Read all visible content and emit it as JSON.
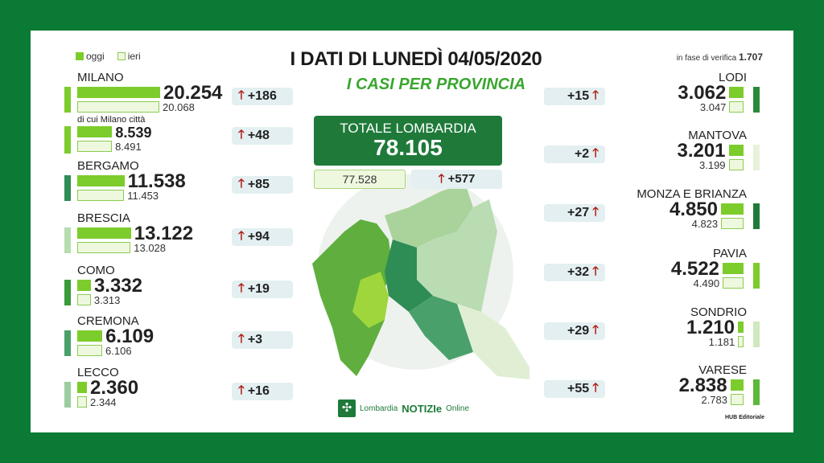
{
  "legend": {
    "today": "oggi",
    "yesterday": "ieri"
  },
  "header": {
    "title": "I DATI DI LUNEDÌ 04/05/2020",
    "subtitle": "I CASI PER PROVINCIA",
    "verification_label": "in fase di verifica",
    "verification_value": "1.707"
  },
  "total": {
    "label": "TOTALE LOMBARDIA",
    "value": "78.105",
    "previous": "77.528",
    "delta": "+577"
  },
  "colors": {
    "frame": "#0b7a35",
    "today_bar": "#7ccc2c",
    "yesterday_bar": "#eef8df",
    "increase_arrow": "#b01a10"
  },
  "left": [
    {
      "name": "MILANO",
      "today": "20.254",
      "yesterday": "20.068",
      "delta": "+186",
      "t": 20254,
      "y": 20068,
      "color": "#7ccc2c"
    },
    {
      "name": "di cui Milano città",
      "today": "8.539",
      "yesterday": "8.491",
      "delta": "+48",
      "t": 8539,
      "y": 8491,
      "color": "#7ccc2c",
      "sub": true
    },
    {
      "name": "BERGAMO",
      "today": "11.538",
      "yesterday": "11.453",
      "delta": "+85",
      "t": 11538,
      "y": 11453,
      "color": "#2e8c55"
    },
    {
      "name": "BRESCIA",
      "today": "13.122",
      "yesterday": "13.028",
      "delta": "+94",
      "t": 13122,
      "y": 13028,
      "color": "#b7dcb0"
    },
    {
      "name": "COMO",
      "today": "3.332",
      "yesterday": "3.313",
      "delta": "+19",
      "t": 3332,
      "y": 3313,
      "color": "#3a9a3a"
    },
    {
      "name": "CREMONA",
      "today": "6.109",
      "yesterday": "6.106",
      "delta": "+3",
      "t": 6109,
      "y": 6106,
      "color": "#4aa06a"
    },
    {
      "name": "LECCO",
      "today": "2.360",
      "yesterday": "2.344",
      "delta": "+16",
      "t": 2360,
      "y": 2344,
      "color": "#9ccca0"
    }
  ],
  "right": [
    {
      "name": "LODI",
      "today": "3.062",
      "yesterday": "3.047",
      "delta": "+15",
      "t": 3062,
      "y": 3047,
      "color": "#2a8a3a"
    },
    {
      "name": "MANTOVA",
      "today": "3.201",
      "yesterday": "3.199",
      "delta": "+2",
      "t": 3201,
      "y": 3199,
      "color": "#e6f2da"
    },
    {
      "name": "MONZA E BRIANZA",
      "today": "4.850",
      "yesterday": "4.823",
      "delta": "+27",
      "t": 4850,
      "y": 4823,
      "color": "#1f7a3a"
    },
    {
      "name": "PAVIA",
      "today": "4.522",
      "yesterday": "4.490",
      "delta": "+32",
      "t": 4522,
      "y": 4490,
      "color": "#7ccc2c"
    },
    {
      "name": "SONDRIO",
      "today": "1.210",
      "yesterday": "1.181",
      "delta": "+29",
      "t": 1210,
      "y": 1181,
      "color": "#cfe8c0"
    },
    {
      "name": "VARESE",
      "today": "2.838",
      "yesterday": "2.783",
      "delta": "+55",
      "t": 2838,
      "y": 2783,
      "color": "#5cb83a"
    }
  ],
  "footer": {
    "logo_text": "Lombardia",
    "logo_bold": "NOTIZIe",
    "logo_suffix": "Online",
    "credit": "HUB Editoriale"
  }
}
